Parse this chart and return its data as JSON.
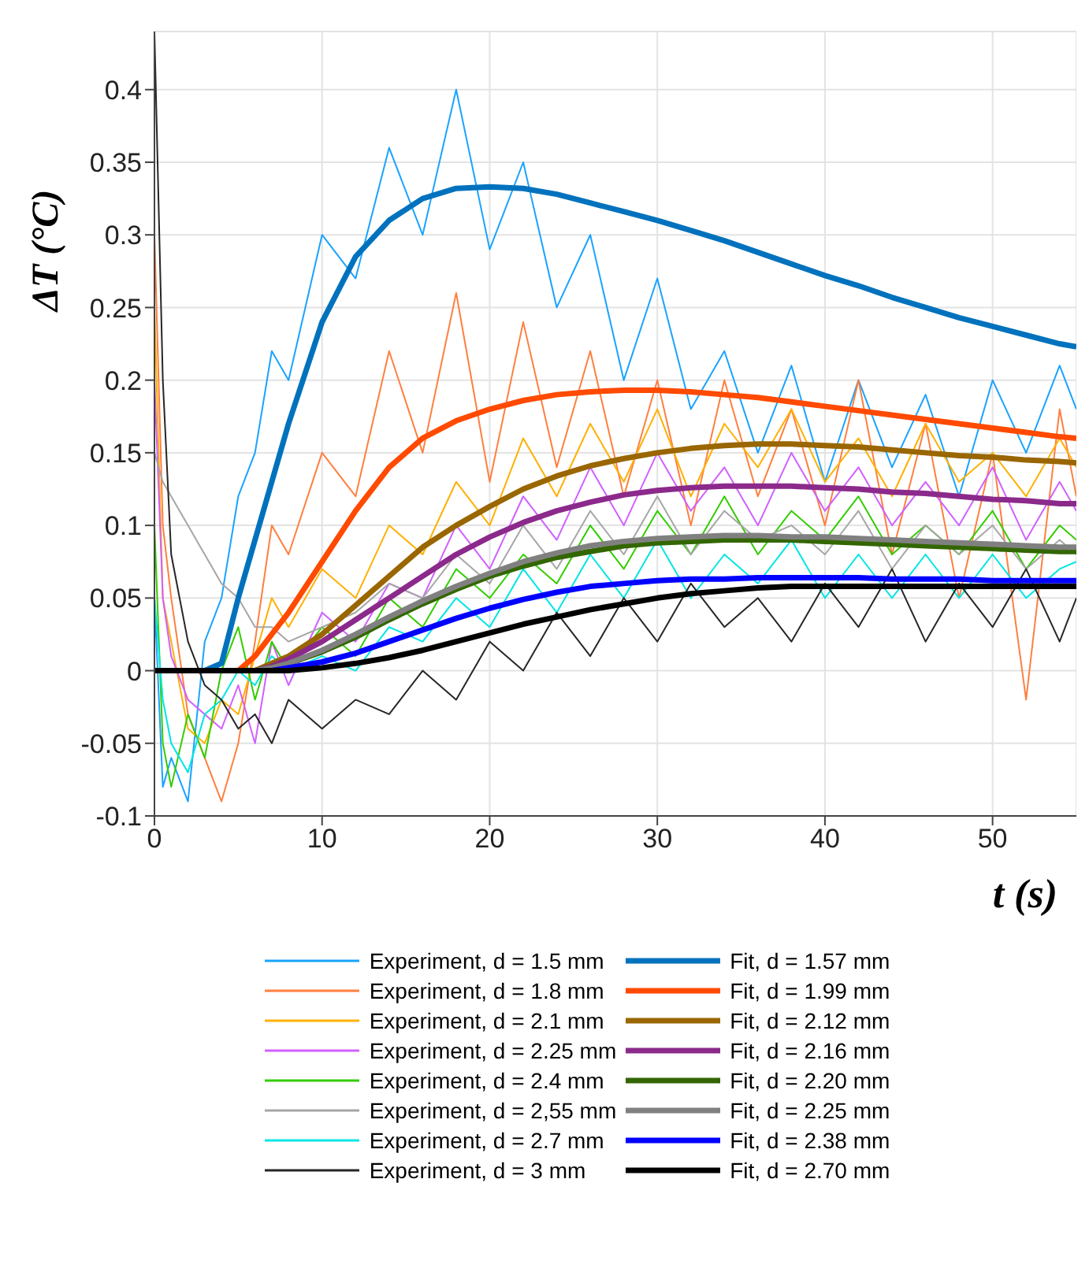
{
  "chart_data": {
    "type": "line",
    "xlabel": "t (s)",
    "ylabel": "ΔT (°C)",
    "xlim": [
      0,
      55
    ],
    "ylim": [
      -0.1,
      0.44
    ],
    "xticks": [
      0,
      10,
      20,
      30,
      40,
      50
    ],
    "yticks": [
      -0.1,
      -0.05,
      0,
      0.05,
      0.1,
      0.15,
      0.2,
      0.25,
      0.3,
      0.35,
      0.4
    ],
    "grid": true,
    "legend": "bottom",
    "marker": "none",
    "x": [
      0,
      0.5,
      1,
      2,
      3,
      4,
      5,
      6,
      7,
      8,
      10,
      12,
      14,
      16,
      18,
      20,
      22,
      24,
      26,
      28,
      30,
      32,
      34,
      36,
      38,
      40,
      42,
      44,
      46,
      48,
      50,
      52,
      54,
      55
    ],
    "series": [
      {
        "name": "Experiment, d = 1.5 mm",
        "color": "#1aa3ff",
        "values": [
          0.05,
          -0.08,
          -0.06,
          -0.09,
          0.02,
          0.05,
          0.12,
          0.15,
          0.22,
          0.2,
          0.3,
          0.27,
          0.36,
          0.3,
          0.4,
          0.29,
          0.35,
          0.25,
          0.3,
          0.2,
          0.27,
          0.18,
          0.22,
          0.15,
          0.21,
          0.13,
          0.2,
          0.14,
          0.19,
          0.12,
          0.2,
          0.15,
          0.21,
          0.18
        ]
      },
      {
        "name": "Experiment, d = 1.8 mm",
        "color": "#ff7f3f",
        "values": [
          0.3,
          0.1,
          0.05,
          -0.03,
          -0.06,
          -0.09,
          -0.05,
          0.02,
          0.1,
          0.08,
          0.15,
          0.12,
          0.22,
          0.15,
          0.26,
          0.13,
          0.24,
          0.14,
          0.22,
          0.12,
          0.2,
          0.1,
          0.2,
          0.12,
          0.18,
          0.1,
          0.2,
          0.08,
          0.17,
          0.05,
          0.15,
          -0.02,
          0.18,
          0.12
        ]
      },
      {
        "name": "Experiment, d = 2.1 mm",
        "color": "#ffb000",
        "values": [
          0.25,
          0.05,
          0.02,
          -0.04,
          -0.05,
          -0.02,
          -0.03,
          0.01,
          0.05,
          0.03,
          0.07,
          0.05,
          0.1,
          0.08,
          0.13,
          0.1,
          0.16,
          0.12,
          0.17,
          0.13,
          0.18,
          0.12,
          0.17,
          0.14,
          0.18,
          0.13,
          0.16,
          0.12,
          0.17,
          0.13,
          0.15,
          0.12,
          0.16,
          0.14
        ]
      },
      {
        "name": "Experiment, d = 2.25 mm",
        "color": "#d060ff",
        "values": [
          0.2,
          0.05,
          0.01,
          -0.02,
          -0.03,
          -0.04,
          -0.01,
          -0.05,
          0.02,
          -0.01,
          0.04,
          0.02,
          0.06,
          0.05,
          0.1,
          0.07,
          0.12,
          0.09,
          0.14,
          0.1,
          0.15,
          0.11,
          0.14,
          0.1,
          0.15,
          0.11,
          0.14,
          0.1,
          0.13,
          0.1,
          0.14,
          0.09,
          0.13,
          0.11
        ]
      },
      {
        "name": "Experiment, d = 2.4 mm",
        "color": "#33cc00",
        "values": [
          0.1,
          -0.05,
          -0.08,
          -0.03,
          -0.06,
          0.0,
          0.03,
          -0.02,
          0.02,
          0.0,
          0.03,
          0.01,
          0.05,
          0.03,
          0.07,
          0.05,
          0.08,
          0.06,
          0.1,
          0.07,
          0.11,
          0.08,
          0.12,
          0.08,
          0.11,
          0.09,
          0.12,
          0.08,
          0.1,
          0.08,
          0.11,
          0.07,
          0.1,
          0.09
        ]
      },
      {
        "name": "Experiment, d = 2,55 mm",
        "color": "#a6a6a6",
        "values": [
          0.15,
          0.13,
          0.12,
          0.1,
          0.08,
          0.06,
          0.05,
          0.03,
          0.03,
          0.02,
          0.03,
          0.04,
          0.06,
          0.05,
          0.08,
          0.06,
          0.1,
          0.07,
          0.11,
          0.08,
          0.12,
          0.08,
          0.11,
          0.09,
          0.1,
          0.08,
          0.11,
          0.07,
          0.1,
          0.08,
          0.1,
          0.07,
          0.09,
          0.08
        ]
      },
      {
        "name": "Experiment, d = 2.7 mm",
        "color": "#00e5e5",
        "values": [
          0.05,
          -0.02,
          -0.05,
          -0.07,
          -0.03,
          -0.02,
          0.0,
          -0.01,
          0.01,
          0.0,
          0.01,
          0.0,
          0.03,
          0.02,
          0.05,
          0.03,
          0.07,
          0.04,
          0.08,
          0.05,
          0.09,
          0.05,
          0.08,
          0.06,
          0.09,
          0.05,
          0.08,
          0.05,
          0.08,
          0.05,
          0.08,
          0.05,
          0.07,
          0.075
        ]
      },
      {
        "name": "Experiment, d = 3 mm",
        "color": "#262626",
        "values": [
          0.44,
          0.2,
          0.08,
          0.02,
          -0.01,
          -0.02,
          -0.04,
          -0.03,
          -0.05,
          -0.02,
          -0.04,
          -0.02,
          -0.03,
          0.0,
          -0.02,
          0.02,
          0.0,
          0.04,
          0.01,
          0.05,
          0.02,
          0.06,
          0.03,
          0.05,
          0.02,
          0.06,
          0.03,
          0.07,
          0.02,
          0.06,
          0.03,
          0.07,
          0.02,
          0.05
        ]
      },
      {
        "name": "Fit, d = 1.57 mm",
        "color": "#0072bd",
        "values": [
          null,
          null,
          null,
          null,
          0,
          0.005,
          0.05,
          0.09,
          0.13,
          0.17,
          0.24,
          0.285,
          0.31,
          0.325,
          0.332,
          0.333,
          0.332,
          0.328,
          0.322,
          0.316,
          0.31,
          0.303,
          0.296,
          0.288,
          0.28,
          0.272,
          0.265,
          0.257,
          0.25,
          0.243,
          0.237,
          0.231,
          0.225,
          0.223
        ]
      },
      {
        "name": "Fit, d = 1.99 mm",
        "color": "#ff4a00",
        "values": [
          null,
          null,
          null,
          null,
          null,
          null,
          0,
          0.01,
          0.025,
          0.04,
          0.075,
          0.11,
          0.14,
          0.16,
          0.172,
          0.18,
          0.186,
          0.19,
          0.192,
          0.193,
          0.193,
          0.192,
          0.19,
          0.188,
          0.185,
          0.182,
          0.179,
          0.176,
          0.173,
          0.17,
          0.167,
          0.164,
          0.161,
          0.16
        ]
      },
      {
        "name": "Fit, d = 2.12 mm",
        "color": "#996600",
        "values": [
          null,
          null,
          null,
          null,
          null,
          null,
          null,
          0,
          0.005,
          0.01,
          0.025,
          0.045,
          0.065,
          0.085,
          0.1,
          0.113,
          0.125,
          0.134,
          0.141,
          0.146,
          0.15,
          0.153,
          0.155,
          0.156,
          0.156,
          0.155,
          0.154,
          0.152,
          0.15,
          0.148,
          0.147,
          0.145,
          0.144,
          0.143
        ]
      },
      {
        "name": "Fit, d = 2.16  mm",
        "color": "#8b2a8b",
        "values": [
          null,
          null,
          null,
          null,
          null,
          null,
          null,
          0,
          0.003,
          0.008,
          0.02,
          0.035,
          0.05,
          0.065,
          0.08,
          0.092,
          0.102,
          0.11,
          0.116,
          0.121,
          0.124,
          0.126,
          0.127,
          0.127,
          0.127,
          0.126,
          0.125,
          0.123,
          0.122,
          0.12,
          0.118,
          0.117,
          0.115,
          0.115
        ]
      },
      {
        "name": "Fit, d = 2.20  mm",
        "color": "#336600",
        "values": [
          null,
          null,
          null,
          null,
          null,
          null,
          null,
          0,
          0.002,
          0.005,
          0.013,
          0.023,
          0.035,
          0.046,
          0.056,
          0.065,
          0.072,
          0.078,
          0.082,
          0.086,
          0.088,
          0.089,
          0.09,
          0.09,
          0.09,
          0.089,
          0.088,
          0.087,
          0.086,
          0.085,
          0.084,
          0.083,
          0.082,
          0.082
        ]
      },
      {
        "name": "Fit, d = 2.25  mm",
        "color": "#808080",
        "values": [
          null,
          null,
          null,
          null,
          null,
          null,
          null,
          0,
          0.002,
          0.005,
          0.014,
          0.025,
          0.037,
          0.048,
          0.058,
          0.067,
          0.075,
          0.081,
          0.086,
          0.089,
          0.091,
          0.092,
          0.093,
          0.093,
          0.092,
          0.092,
          0.091,
          0.09,
          0.089,
          0.088,
          0.087,
          0.086,
          0.085,
          0.085
        ]
      },
      {
        "name": "Fit, d = 2.38 mm",
        "color": "#0000ff",
        "values": [
          null,
          null,
          null,
          null,
          null,
          null,
          null,
          null,
          0,
          0.002,
          0.006,
          0.012,
          0.02,
          0.028,
          0.036,
          0.043,
          0.049,
          0.054,
          0.058,
          0.06,
          0.062,
          0.063,
          0.063,
          0.064,
          0.064,
          0.064,
          0.064,
          0.063,
          0.063,
          0.063,
          0.062,
          0.062,
          0.062,
          0.062
        ]
      },
      {
        "name": "Fit, d = 2.70 mm",
        "color": "#000000",
        "values": [
          0,
          0,
          0,
          0,
          0,
          0,
          0,
          0,
          0,
          0,
          0.002,
          0.005,
          0.009,
          0.014,
          0.02,
          0.026,
          0.032,
          0.037,
          0.042,
          0.046,
          0.05,
          0.053,
          0.055,
          0.057,
          0.058,
          0.058,
          0.058,
          0.058,
          0.058,
          0.058,
          0.058,
          0.058,
          0.058,
          0.058
        ]
      }
    ]
  }
}
